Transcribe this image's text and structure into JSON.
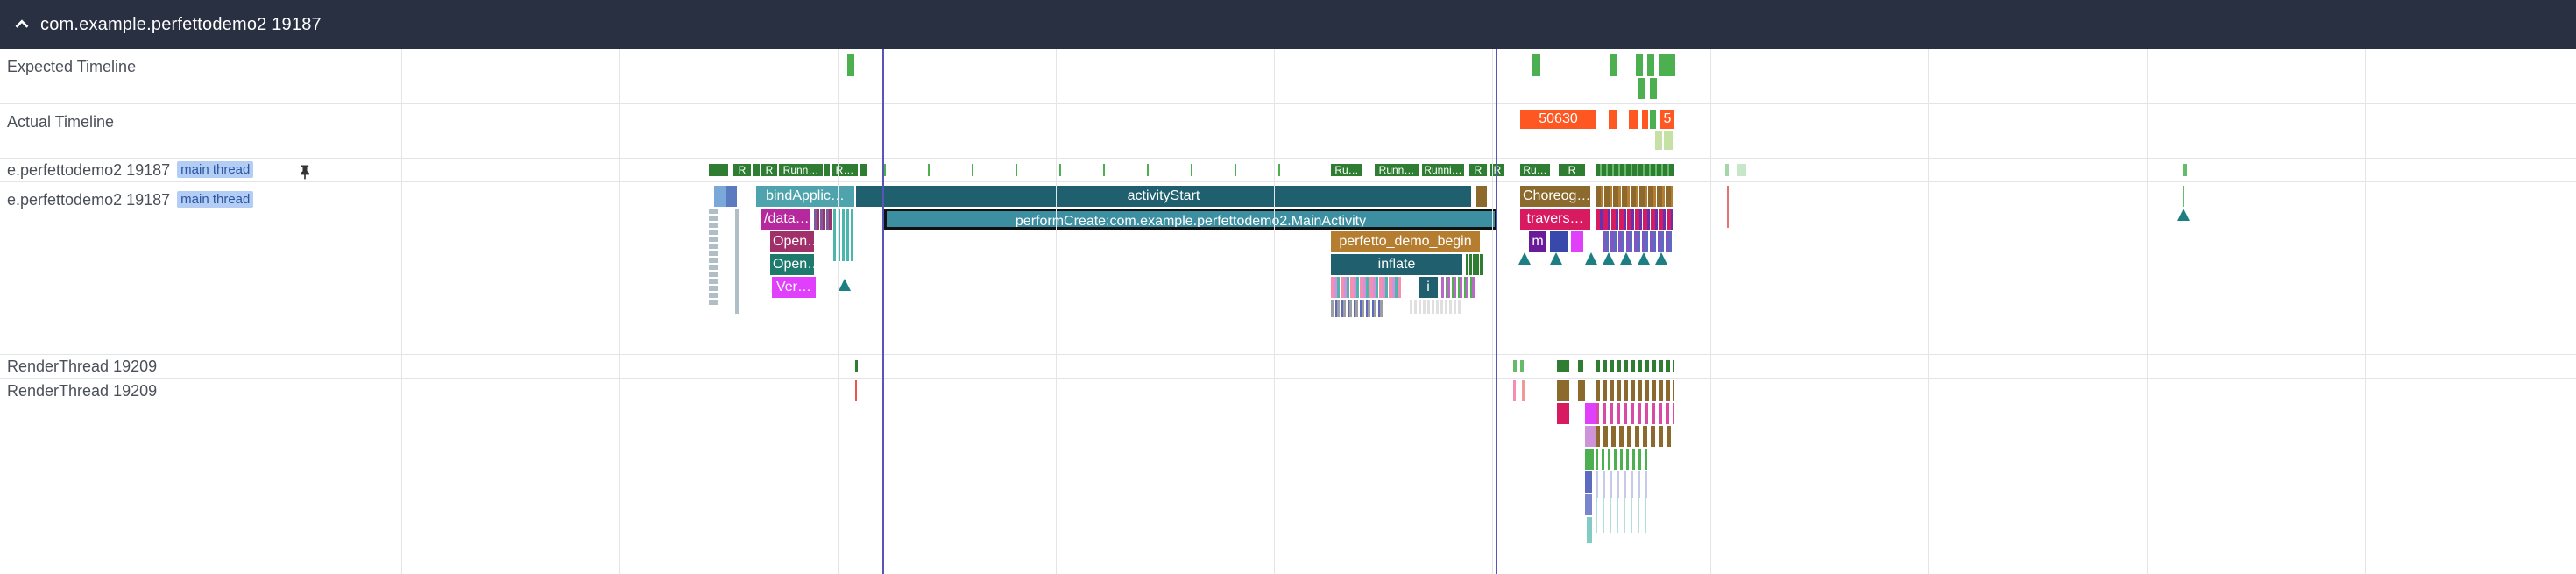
{
  "header": {
    "title": "com.example.perfettodemo2 19187",
    "collapse_icon": "chevron-up-icon"
  },
  "tracks": {
    "expected": {
      "name": "Expected Timeline"
    },
    "actual": {
      "name": "Actual Timeline",
      "frame_label": "50630",
      "frame_label_small": "5"
    },
    "main_summary": {
      "name": "e.perfettodemo2 19187",
      "tag": "main thread",
      "pin_icon": "pin-icon",
      "state_labels": [
        "R",
        "R",
        "Runn…",
        "R…",
        "Ru…",
        "Runn…",
        "Runni…",
        "R",
        "R",
        "Ru…",
        "R"
      ]
    },
    "main_slices": {
      "name": "e.perfettodemo2 19187",
      "tag": "main thread"
    },
    "render_summary": {
      "name": "RenderThread 19209"
    },
    "render_slices": {
      "name": "RenderThread 19209"
    }
  },
  "slices": {
    "bind_application": "bindApplic…",
    "activity_start": "activityStart",
    "perform_create": "performCreate:com.example.perfettodemo2.MainActivity",
    "data_path": "/data…",
    "open1": "Open…",
    "open2": "Open…",
    "verify": "Ver…",
    "perfetto_demo_begin": "perfetto_demo_begin",
    "inflate": "inflate",
    "inflate_child": "i",
    "choreographer": "Choreog…",
    "traversal": "travers…",
    "measure": "m"
  },
  "colors": {
    "header_bg": "#283041",
    "teal_dark": "#1f5f6e",
    "teal": "#3b8fa0",
    "magenta": "#b5289e",
    "berry": "#a0306a",
    "pink": "#d84aa6",
    "orange_brown": "#b47d2f",
    "olive": "#8c6a2e",
    "green": "#3b8a3d",
    "deep_orange": "#ff5722",
    "marker": "#5755b8"
  }
}
